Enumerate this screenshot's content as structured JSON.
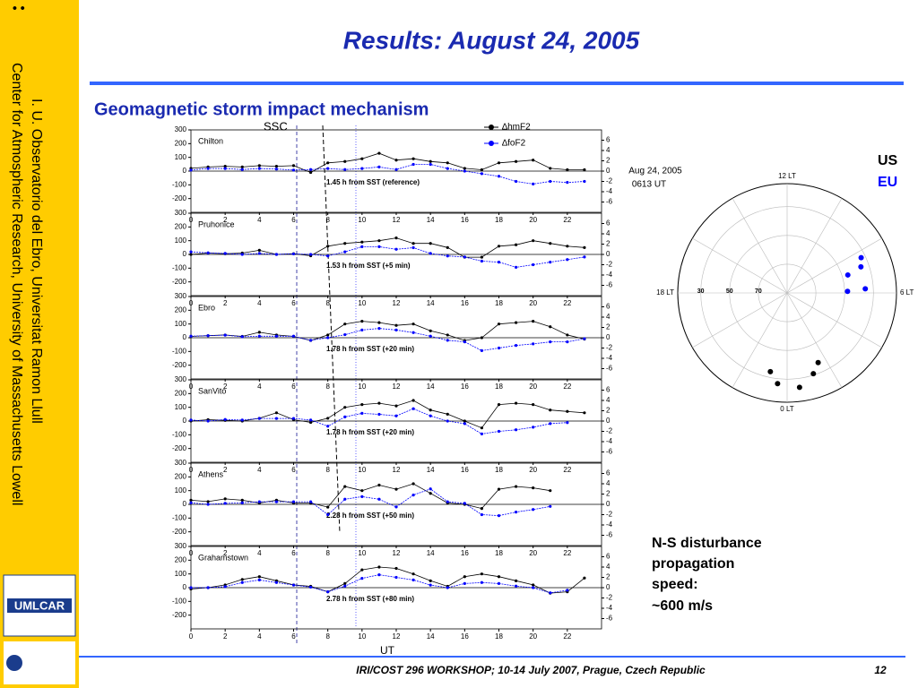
{
  "title": "Results: August 24, 2005",
  "subtitle": "Geomagnetic storm impact mechanism",
  "sidebar": [
    "I. U. Observatorio del Ebro, Universitat Ramon Llull",
    "Center for Atmospheric Research, University of Massachusetts Lowell"
  ],
  "logo": "UMLCAR",
  "footer": "IRI/COST 296 WORKSHOP; 10-14 July 2007, Prague, Czech Republic",
  "page_number": "12",
  "ssc_label": "SSC",
  "conclusion": [
    "N-S disturbance",
    "propagation",
    "speed:",
    "~600 m/s"
  ],
  "chart_data": [
    {
      "type": "line",
      "xlabel": "UT",
      "x": [
        0,
        1,
        2,
        3,
        4,
        5,
        6,
        7,
        8,
        9,
        10,
        11,
        12,
        13,
        14,
        15,
        16,
        17,
        18,
        19,
        20,
        21,
        22,
        23
      ],
      "xlim": [
        0,
        24
      ],
      "xticks": [
        0,
        2,
        4,
        6,
        8,
        10,
        12,
        14,
        16,
        18,
        20,
        22
      ],
      "ylim": [
        -300,
        300
      ],
      "yticks": [
        -200,
        -100,
        0,
        100,
        200,
        300
      ],
      "y2lim": [
        -8,
        8
      ],
      "y2ticks": [
        -6,
        -4,
        -2,
        0,
        2,
        4,
        6
      ],
      "series": [
        {
          "name": "∆hmF2",
          "color": "#000000"
        },
        {
          "name": "∆foF2",
          "color": "#0000ff",
          "axis": "y2"
        }
      ],
      "panels": [
        {
          "name": "Chilton",
          "annotation": "1.45 h from SST (reference)",
          "series": [
            {
              "values": [
                20,
                30,
                35,
                30,
                40,
                35,
                40,
                -10,
                60,
                70,
                90,
                130,
                80,
                90,
                70,
                60,
                20,
                10,
                60,
                70,
                80,
                20,
                10,
                10
              ]
            },
            {
              "values": [
                0.2,
                0.5,
                0.5,
                0.3,
                0.5,
                0.4,
                0.2,
                0.3,
                0.5,
                0.3,
                0.5,
                0.8,
                0.3,
                1.3,
                1.3,
                0.5,
                0,
                -0.5,
                -1.0,
                -2.0,
                -2.5,
                -2.0,
                -2.2,
                -2.0
              ]
            }
          ]
        },
        {
          "name": "Pruhonice",
          "annotation": "1.53 h from SST (+5 min)",
          "series": [
            {
              "values": [
                0,
                10,
                5,
                10,
                30,
                0,
                5,
                -10,
                60,
                80,
                90,
                100,
                120,
                80,
                80,
                50,
                -20,
                -20,
                60,
                70,
                100,
                80,
                60,
                50
              ]
            },
            {
              "values": [
                0.5,
                0.3,
                0.2,
                0,
                0.2,
                0,
                0.1,
                0,
                -0.3,
                0.5,
                1.5,
                1.5,
                1.0,
                1.3,
                0.2,
                -0.3,
                -0.5,
                -1.3,
                -1.5,
                -2.5,
                -2.0,
                -1.5,
                -1.0,
                -0.5
              ]
            }
          ]
        },
        {
          "name": "Ebro",
          "annotation": "1.78 h from SST (+20 min)",
          "series": [
            {
              "values": [
                10,
                15,
                20,
                10,
                40,
                20,
                10,
                -20,
                20,
                100,
                120,
                110,
                90,
                100,
                50,
                20,
                -20,
                0,
                100,
                110,
                120,
                80,
                20,
                -10
              ]
            },
            {
              "values": [
                0.3,
                0.4,
                0.5,
                0.2,
                0.3,
                0.3,
                0.3,
                -0.5,
                0,
                0.6,
                1.5,
                1.8,
                1.5,
                1.0,
                0.3,
                -0.5,
                -0.8,
                -2.5,
                -2.0,
                -1.5,
                -1.2,
                -0.8,
                -0.8,
                -0.2
              ]
            }
          ]
        },
        {
          "name": "SanVito",
          "annotation": "1.78 h from SST (+20 min)",
          "series": [
            {
              "values": [
                0,
                10,
                5,
                0,
                20,
                60,
                10,
                -10,
                20,
                100,
                120,
                130,
                110,
                150,
                80,
                50,
                0,
                -50,
                120,
                130,
                120,
                80,
                70,
                60
              ]
            },
            {
              "values": [
                0.2,
                0,
                0.3,
                0.2,
                0.5,
                0.5,
                0.5,
                0.2,
                -1,
                0.8,
                1.5,
                1.3,
                1.0,
                2.4,
                1.0,
                0,
                -0.5,
                -2.5,
                -2.0,
                -1.7,
                -1.2,
                -0.5,
                -0.3,
                null
              ]
            }
          ]
        },
        {
          "name": "Athens",
          "annotation": "2.28 h from SST (+50 min)",
          "series": [
            {
              "values": [
                30,
                20,
                40,
                30,
                10,
                30,
                10,
                10,
                -20,
                130,
                100,
                140,
                110,
                150,
                80,
                10,
                0,
                -30,
                110,
                130,
                120,
                100,
                null,
                null
              ]
            },
            {
              "values": [
                0.3,
                0,
                0.2,
                0.3,
                0.5,
                0.5,
                0.5,
                0.5,
                -2.0,
                1.0,
                1.5,
                1.0,
                -0.5,
                1.8,
                3.0,
                0.5,
                0.2,
                -2.0,
                -2.2,
                -1.5,
                -1.0,
                -0.4,
                null,
                null
              ]
            }
          ]
        },
        {
          "name": "Grahamstown",
          "annotation": "2.78 h from SST (+80 min)",
          "series": [
            {
              "values": [
                -10,
                0,
                20,
                60,
                80,
                50,
                20,
                10,
                -30,
                30,
                130,
                150,
                140,
                100,
                50,
                10,
                80,
                100,
                80,
                50,
                20,
                -40,
                -30,
                70
              ]
            },
            {
              "values": [
                0,
                0,
                0.2,
                1,
                1.5,
                1,
                0.5,
                0.1,
                -0.8,
                0.3,
                1.8,
                2.5,
                2,
                1.5,
                0.5,
                0,
                0.8,
                1,
                0.8,
                0.3,
                0,
                -1,
                -0.5,
                null
              ]
            }
          ]
        }
      ]
    },
    {
      "type": "polar",
      "annotation": [
        "Aug 24, 2005",
        "0613 UT"
      ],
      "rlim": [
        90,
        14
      ],
      "rticks": [
        30,
        50,
        70
      ],
      "angle_ticks": [
        {
          "value": 12,
          "label": "12 LT"
        },
        {
          "value": 18,
          "label": "18 LT"
        },
        {
          "value": 6,
          "label": "6 LT"
        },
        {
          "value": 0,
          "label": "0 LT"
        }
      ],
      "series": [
        {
          "name": "US",
          "color": "#000000",
          "lt": [
            23.2,
            23.6,
            0.5,
            1.2,
            1.6
          ],
          "lat": [
            34,
            26.6,
            23.8,
            31,
            37
          ]
        },
        {
          "name": "EU",
          "color": "#0000ff",
          "lt": [
            7.7,
            7.3,
            7.1,
            6.2,
            6.1
          ],
          "lat": [
            33,
            35.6,
            46,
            35.6,
            48
          ]
        }
      ]
    }
  ]
}
